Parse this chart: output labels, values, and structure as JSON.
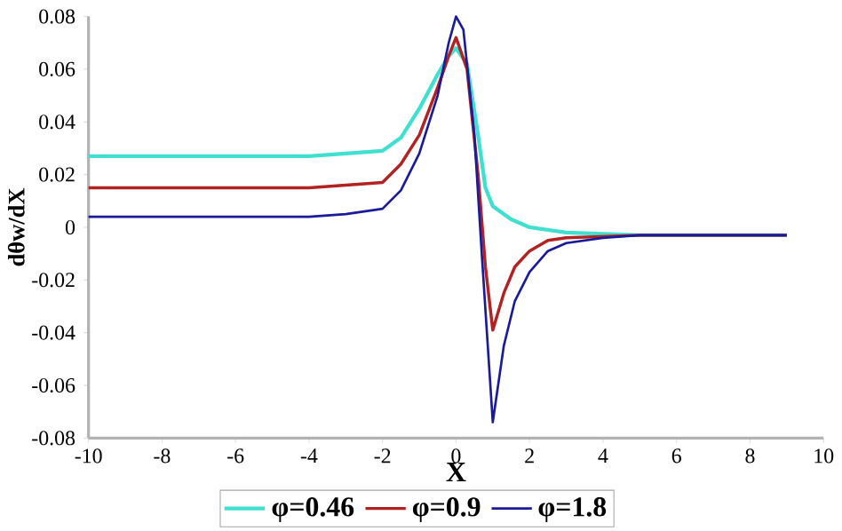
{
  "chart_data": {
    "type": "line",
    "xlabel": "X",
    "ylabel": "dθw/dX",
    "xlim": [
      -10,
      10
    ],
    "ylim": [
      -0.08,
      0.08
    ],
    "xticks": [
      -10,
      -8,
      -6,
      -4,
      -2,
      0,
      2,
      4,
      6,
      8,
      10
    ],
    "yticks": [
      -0.08,
      -0.06,
      -0.04,
      -0.02,
      0,
      0.02,
      0.04,
      0.06,
      0.08
    ],
    "grid": false,
    "legend": "bottom",
    "marker": "none",
    "line_style": "solid",
    "series": [
      {
        "name": "φ=0.46",
        "color": "#40e0d0",
        "x": [
          -10,
          -4,
          -3,
          -2,
          -1.5,
          -1,
          -0.5,
          -0.2,
          0,
          0.3,
          0.6,
          0.8,
          1,
          1.5,
          2,
          3,
          5,
          9
        ],
        "values": [
          0.027,
          0.027,
          0.028,
          0.029,
          0.034,
          0.045,
          0.058,
          0.065,
          0.068,
          0.062,
          0.035,
          0.015,
          0.008,
          0.003,
          0.0,
          -0.002,
          -0.003,
          -0.003
        ]
      },
      {
        "name": "φ=0.9",
        "color": "#b22222",
        "x": [
          -10,
          -4,
          -3,
          -2,
          -1.5,
          -1,
          -0.5,
          -0.2,
          0,
          0.3,
          0.6,
          0.8,
          1,
          1.3,
          1.6,
          2,
          2.5,
          3,
          5,
          9
        ],
        "values": [
          0.015,
          0.015,
          0.016,
          0.017,
          0.024,
          0.035,
          0.053,
          0.065,
          0.072,
          0.06,
          0.02,
          -0.015,
          -0.039,
          -0.025,
          -0.015,
          -0.009,
          -0.005,
          -0.004,
          -0.003,
          -0.003
        ]
      },
      {
        "name": "φ=1.8",
        "color": "#1a1a9a",
        "x": [
          -10,
          -4,
          -3,
          -2,
          -1.5,
          -1,
          -0.5,
          -0.2,
          0,
          0.2,
          0.5,
          0.7,
          1,
          1.3,
          1.6,
          2,
          2.5,
          3,
          4,
          5,
          9
        ],
        "values": [
          0.004,
          0.004,
          0.005,
          0.007,
          0.014,
          0.028,
          0.05,
          0.07,
          0.08,
          0.075,
          0.035,
          -0.01,
          -0.074,
          -0.045,
          -0.028,
          -0.017,
          -0.009,
          -0.006,
          -0.004,
          -0.003,
          -0.003
        ]
      }
    ]
  }
}
